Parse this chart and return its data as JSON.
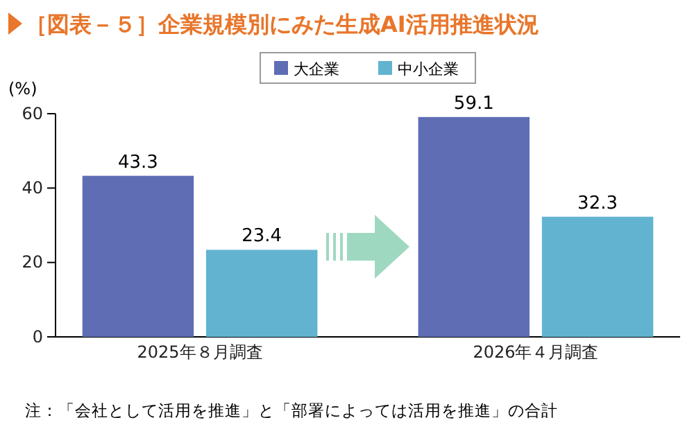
{
  "chart_data": {
    "type": "bar",
    "title": "［図表－５］企業規模別にみた生成AI活用推進状況",
    "ylabel": "(%)",
    "categories": [
      "2025年８月調査",
      "2026年４月調査"
    ],
    "series": [
      {
        "name": "大企業",
        "color": "#5f6db5",
        "values": [
          43.3,
          59.1
        ]
      },
      {
        "name": "中小企業",
        "color": "#62b3cf",
        "values": [
          23.4,
          32.3
        ]
      }
    ],
    "ylim": [
      0,
      60
    ],
    "yticks": [
      0,
      20,
      40,
      60
    ],
    "data_labels": true,
    "legend": "top",
    "grid": false,
    "annotations": [
      "注：「会社として活用を推進」と「部署によっては活用を推進」の合計"
    ]
  }
}
